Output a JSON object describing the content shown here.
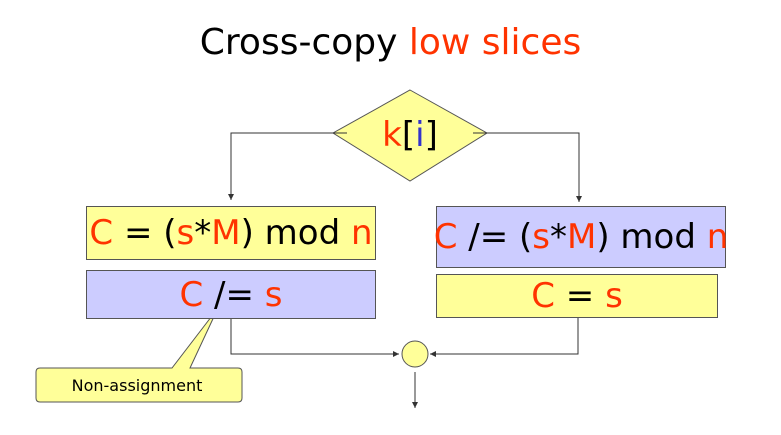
{
  "title": {
    "prefix": "Cross-copy ",
    "highlight": "low slices"
  },
  "decision": {
    "k": "k",
    "open": "[",
    "i": "i",
    "close": "]"
  },
  "left_top": {
    "c": "C",
    "mid": " = (",
    "s": "s",
    "star": "*",
    "m": "M",
    "tail": ") mod ",
    "n": "n"
  },
  "left_bottom": {
    "c": "C",
    "mid": " /= ",
    "s": "s"
  },
  "right_top": {
    "c": "C",
    "mid": " /= (",
    "s": "s",
    "star": "*",
    "m": "M",
    "tail": ") mod ",
    "n": "n"
  },
  "right_bottom": {
    "c": "C",
    "mid": " = ",
    "s": "s"
  },
  "callout": {
    "label": "Non-assignment"
  },
  "colors": {
    "yellow": "#ffff99",
    "lavender": "#ccccff",
    "accent": "#ff3300",
    "blue": "#3333cc"
  }
}
